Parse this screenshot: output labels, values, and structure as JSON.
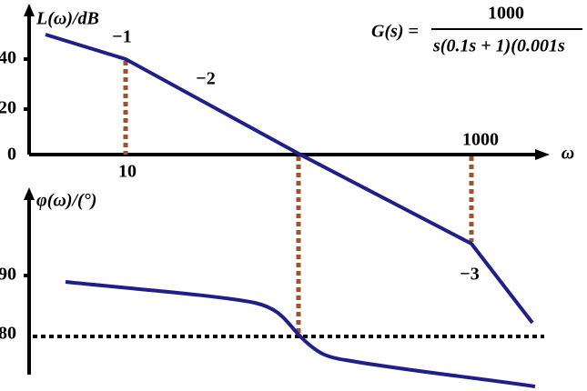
{
  "magnitude": {
    "axis_label": "L(ω)/dB",
    "y_ticks": [
      "40",
      "20",
      "0"
    ],
    "x_ticks": [
      "10",
      "1000"
    ],
    "x_axis_label": "ω",
    "slopes": [
      "−1",
      "−2",
      "−3"
    ]
  },
  "phase": {
    "axis_label": "φ(ω)/(°)",
    "y_ticks": [
      "90",
      "80"
    ]
  },
  "transfer_function": {
    "lhs": "G(s) =",
    "numerator": "1000",
    "denominator": "s(0.1s + 1)(0.001s"
  }
}
